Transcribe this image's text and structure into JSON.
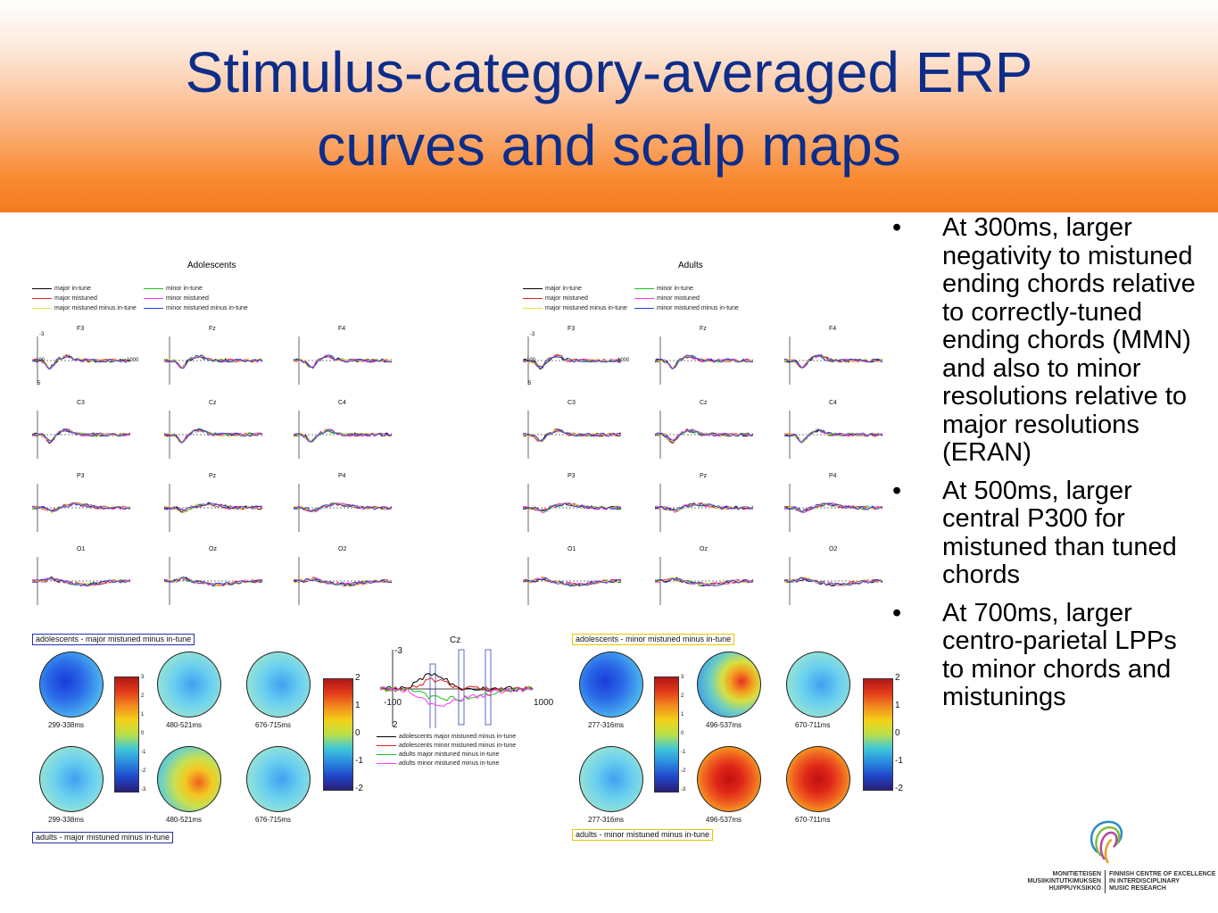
{
  "title_line1": "Stimulus-category-averaged ERP",
  "title_line2": "curves and scalp maps",
  "bullets": [
    "At 300ms, larger negativity to mistuned ending chords relative to correctly-tuned ending chords (MMN) and also to minor resolutions relative to major resolutions (ERAN)",
    "At 500ms, larger central P300 for mistuned than tuned chords",
    "At 700ms, larger centro-parietal LPPs to minor chords and mistunings"
  ],
  "colors": {
    "title": "#0d2d8a",
    "major_in_tune": "#000000",
    "major_mistuned": "#e02020",
    "major_mistuned_minus_in_tune": "#f0e040",
    "minor_in_tune": "#20c020",
    "minor_mistuned": "#ff30ff",
    "minor_mistuned_minus_in_tune": "#2040e0"
  },
  "adolescents_panel": {
    "title": "Adolescents",
    "legend": [
      "major in-tune",
      "minor in-tune",
      "major mistuned",
      "minor mistuned",
      "major mistuned minus in-tune",
      "minor mistuned minus in-tune"
    ],
    "electrodes": [
      "F3",
      "Fz",
      "F4",
      "C3",
      "Cz",
      "C4",
      "P3",
      "Pz",
      "P4",
      "O1",
      "Oz",
      "O2"
    ],
    "ticks": {
      "y_top": "-3",
      "y_bottom": "5",
      "x_left": "-100",
      "x_right": "1000"
    }
  },
  "adults_panel": {
    "title": "Adults",
    "legend": [
      "major in-tune",
      "minor in-tune",
      "major mistuned",
      "minor mistuned",
      "major mistuned minus in-tune",
      "minor mistuned minus in-tune"
    ],
    "electrodes": [
      "F3",
      "Fz",
      "F4",
      "C3",
      "Cz",
      "C4",
      "P3",
      "Pz",
      "P4",
      "O1",
      "Oz",
      "O2"
    ],
    "ticks": {
      "y_top": "-3",
      "y_bottom": "5",
      "x_left": "-100",
      "x_right": "1000"
    }
  },
  "scalp_major": {
    "top_label": "adolescents - major mistuned minus in-tune",
    "bottom_label": "adults - major mistuned minus in-tune",
    "windows": [
      "299-338ms",
      "480-521ms",
      "676-715ms"
    ],
    "colorbar_small": [
      "3",
      "2",
      "1",
      "0",
      "-1",
      "-2",
      "-3"
    ],
    "colorbar_large": [
      "2",
      "1",
      "0",
      "-1",
      "-2"
    ]
  },
  "cz_plot": {
    "title": "Cz",
    "y_top": "-3",
    "y_bottom": "2",
    "x_left": "-100",
    "x_right": "1000",
    "legend": [
      "adolescents major mistuned minus in-tune",
      "adolescents minor mistuned minus in-tune",
      "adults major mistuned minus in-tune",
      "adults minor mistuned minus in-tune"
    ]
  },
  "scalp_minor": {
    "top_label": "adolescents - minor mistuned minus in-tune",
    "bottom_label": "adults - minor mistuned minus in-tune",
    "windows": [
      "277-316ms",
      "496-537ms",
      "670-711ms"
    ],
    "colorbar_small": [
      "3",
      "2",
      "1",
      "0",
      "-1",
      "-2",
      "-3"
    ],
    "colorbar_large": [
      "2",
      "1",
      "0",
      "-1",
      "-2"
    ]
  },
  "logo": {
    "fi_lines": [
      "MONITIETEISEN",
      "MUSIIKINTUTKIMUKSEN",
      "HUIPPUYKSIKKÖ"
    ],
    "en_lines": [
      "FINNISH CENTRE OF EXCELLENCE",
      "IN INTERDISCIPLINARY",
      "MUSIC RESEARCH"
    ]
  }
}
